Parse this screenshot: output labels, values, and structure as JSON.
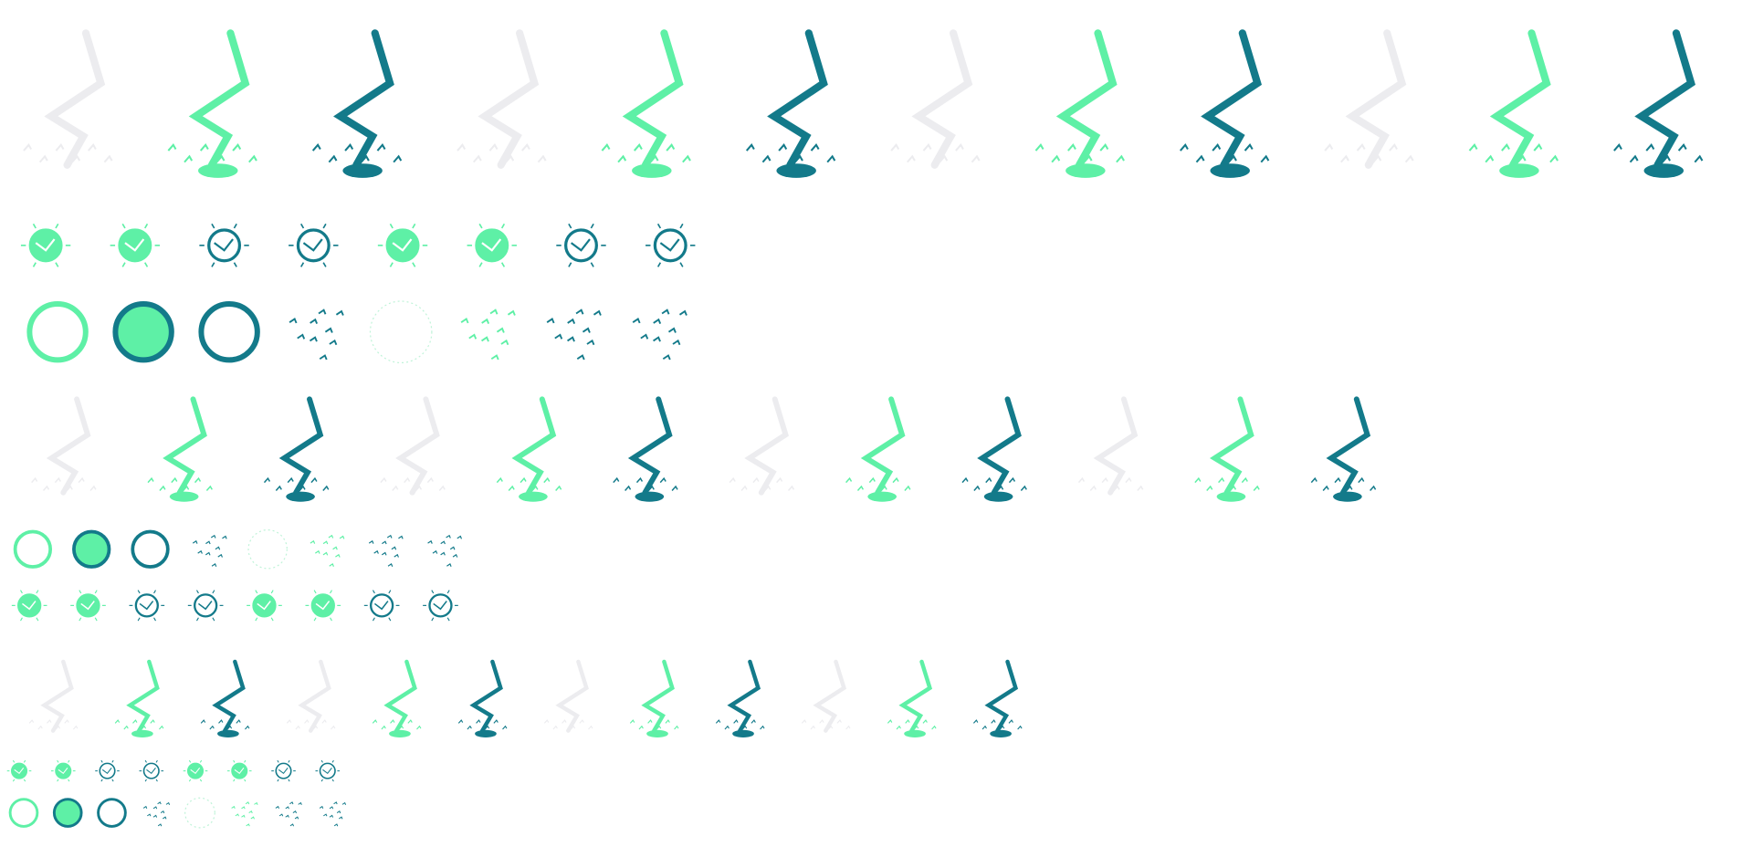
{
  "sheet": {
    "description_visible_text": "",
    "colors": {
      "mint": "#5ef0a6",
      "teal": "#137a8a",
      "ghost": "#ececef",
      "background": "#ffffff"
    },
    "icons": {
      "bolt": "lightning-bolt-icon",
      "orb": "electric-orb-icon",
      "ring": "electric-ring-icon",
      "sparks": "spark-scatter-icon"
    },
    "rows": [
      {
        "name": "bolt-row-large",
        "kind": "bolt",
        "frames": [
          "ghost",
          "mint",
          "teal",
          "ghost",
          "mint",
          "teal",
          "ghost",
          "mint",
          "teal",
          "ghost",
          "mint",
          "teal"
        ]
      },
      {
        "name": "orb-row-large",
        "kind": "orb",
        "frames": [
          "mint",
          "mint",
          "teal",
          "teal",
          "mint",
          "mint",
          "teal",
          "teal"
        ]
      },
      {
        "name": "ring-row-large",
        "kind": "ring",
        "frames": [
          "mint",
          "teal",
          "teal",
          "spark-teal",
          "ring-faint",
          "spark-mint",
          "spark-teal",
          "spark-teal"
        ]
      },
      {
        "name": "bolt-row-medium",
        "kind": "bolt",
        "frames": [
          "ghost",
          "mint",
          "teal",
          "ghost",
          "mint",
          "teal",
          "ghost",
          "mint",
          "teal",
          "ghost",
          "mint",
          "teal"
        ]
      },
      {
        "name": "ring-row-medium",
        "kind": "ring",
        "frames": [
          "mint",
          "teal",
          "teal",
          "spark-teal",
          "ring-faint",
          "spark-mint",
          "spark-teal",
          "spark-teal"
        ]
      },
      {
        "name": "orb-row-medium",
        "kind": "orb",
        "frames": [
          "mint",
          "mint",
          "teal",
          "teal",
          "mint",
          "mint",
          "teal",
          "teal"
        ]
      },
      {
        "name": "bolt-row-small",
        "kind": "bolt",
        "frames": [
          "ghost",
          "mint",
          "teal",
          "ghost",
          "mint",
          "teal",
          "ghost",
          "mint",
          "teal",
          "ghost",
          "mint",
          "teal"
        ]
      },
      {
        "name": "orb-row-small",
        "kind": "orb",
        "frames": [
          "mint",
          "mint",
          "teal",
          "teal",
          "mint",
          "mint",
          "teal",
          "teal"
        ]
      },
      {
        "name": "ring-row-small",
        "kind": "ring",
        "frames": [
          "mint",
          "teal",
          "teal",
          "spark-teal",
          "ring-faint",
          "spark-mint",
          "spark-teal",
          "spark-teal"
        ]
      }
    ]
  }
}
